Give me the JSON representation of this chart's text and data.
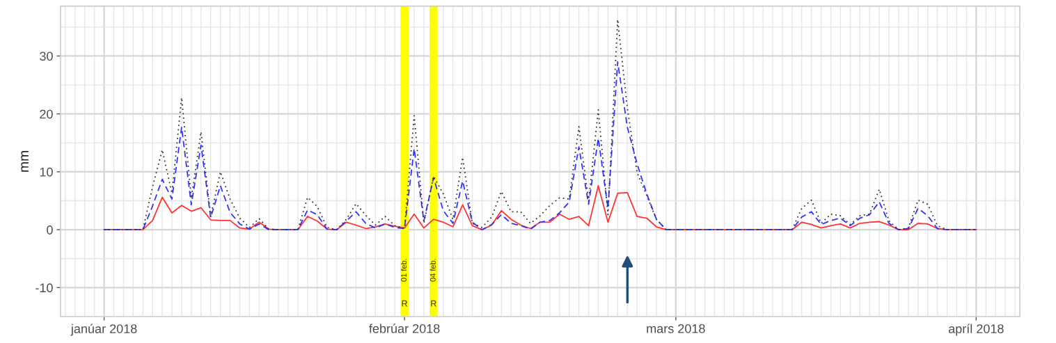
{
  "chart_data": {
    "type": "line",
    "ylabel": "mm",
    "x": [
      "2018-01-01",
      "2018-01-02",
      "2018-01-03",
      "2018-01-04",
      "2018-01-05",
      "2018-01-06",
      "2018-01-07",
      "2018-01-08",
      "2018-01-09",
      "2018-01-10",
      "2018-01-11",
      "2018-01-12",
      "2018-01-13",
      "2018-01-14",
      "2018-01-15",
      "2018-01-16",
      "2018-01-17",
      "2018-01-18",
      "2018-01-19",
      "2018-01-20",
      "2018-01-21",
      "2018-01-22",
      "2018-01-23",
      "2018-01-24",
      "2018-01-25",
      "2018-01-26",
      "2018-01-27",
      "2018-01-28",
      "2018-01-29",
      "2018-01-30",
      "2018-01-31",
      "2018-02-01",
      "2018-02-02",
      "2018-02-03",
      "2018-02-04",
      "2018-02-05",
      "2018-02-06",
      "2018-02-07",
      "2018-02-08",
      "2018-02-09",
      "2018-02-10",
      "2018-02-11",
      "2018-02-12",
      "2018-02-13",
      "2018-02-14",
      "2018-02-15",
      "2018-02-16",
      "2018-02-17",
      "2018-02-18",
      "2018-02-19",
      "2018-02-20",
      "2018-02-21",
      "2018-02-22",
      "2018-02-23",
      "2018-02-24",
      "2018-02-25",
      "2018-02-26",
      "2018-02-27",
      "2018-02-28",
      "2018-03-01",
      "2018-03-02",
      "2018-03-03",
      "2018-03-04",
      "2018-03-05",
      "2018-03-06",
      "2018-03-07",
      "2018-03-08",
      "2018-03-09",
      "2018-03-10",
      "2018-03-11",
      "2018-03-12",
      "2018-03-13",
      "2018-03-14",
      "2018-03-15",
      "2018-03-16",
      "2018-03-17",
      "2018-03-18",
      "2018-03-19",
      "2018-03-20",
      "2018-03-21",
      "2018-03-22",
      "2018-03-23",
      "2018-03-24",
      "2018-03-25",
      "2018-03-26",
      "2018-03-27",
      "2018-03-28",
      "2018-03-29",
      "2018-03-30",
      "2018-03-31",
      "2018-04-01"
    ],
    "series": [
      {
        "color": "#333333",
        "line_style": "dotted",
        "values": [
          0,
          0,
          0,
          0,
          0,
          7.4,
          13.8,
          6.3,
          22.8,
          5.4,
          16.9,
          2.3,
          10.0,
          5.3,
          2.0,
          0.4,
          1.9,
          0.1,
          0,
          0,
          0,
          5.6,
          4.0,
          0.4,
          0,
          1.8,
          4.5,
          2.5,
          0.8,
          2.3,
          0.7,
          0.2,
          19.7,
          1.1,
          9.2,
          6.2,
          1.8,
          12.5,
          1.1,
          0.4,
          2.2,
          6.6,
          3.1,
          3.1,
          1.1,
          2.4,
          4.2,
          5.5,
          5.3,
          17.8,
          4.9,
          20.7,
          2.6,
          36.3,
          21.0,
          9.9,
          5.9,
          1.8,
          0,
          0,
          0,
          0,
          0,
          0,
          0,
          0,
          0,
          0,
          0,
          0,
          0,
          0,
          3.7,
          5.1,
          1.1,
          2.7,
          2.4,
          0.9,
          2.4,
          2.7,
          7.0,
          1.5,
          0,
          0.3,
          5.1,
          4.4,
          0.7,
          0,
          0,
          0,
          0
        ]
      },
      {
        "color": "#3333ff",
        "line_style": "dashed",
        "values": [
          0,
          0,
          0,
          0,
          0,
          4.1,
          8.7,
          5.3,
          17.7,
          4.3,
          14.6,
          2.1,
          7.6,
          3.0,
          1.0,
          0.1,
          1.0,
          0,
          0,
          0,
          0,
          3.4,
          2.6,
          0.1,
          0,
          1.5,
          3.1,
          1.1,
          0.3,
          1.0,
          0.4,
          0.2,
          14.0,
          1.5,
          9.0,
          3.3,
          1.1,
          8.4,
          1.3,
          0,
          0.9,
          2.6,
          1.1,
          0.7,
          0.1,
          1.3,
          1.6,
          2.9,
          4.8,
          14.3,
          4.4,
          15.8,
          3.7,
          29.0,
          17.7,
          11.4,
          6.2,
          1.8,
          0,
          0,
          0,
          0,
          0,
          0,
          0,
          0,
          0,
          0,
          0,
          0,
          0,
          0,
          2.2,
          3.1,
          0.9,
          1.6,
          2.0,
          0.7,
          2.0,
          2.6,
          4.8,
          1.1,
          0,
          0.2,
          3.7,
          2.4,
          0.2,
          0,
          0,
          0,
          0
        ]
      },
      {
        "color": "#ff3333",
        "line_style": "solid",
        "values": [
          0,
          0,
          0,
          0,
          0,
          1.6,
          5.6,
          2.9,
          4.2,
          3.2,
          3.8,
          1.7,
          1.6,
          1.6,
          0.3,
          0.1,
          1.3,
          0.1,
          0,
          0,
          0,
          2.3,
          1.5,
          0.1,
          0,
          1.3,
          0.8,
          0.2,
          0.5,
          1.0,
          0.6,
          0.3,
          2.7,
          0.3,
          1.8,
          1.3,
          0.5,
          4.3,
          0.7,
          0,
          0.8,
          3.3,
          1.8,
          0.8,
          0.2,
          1.3,
          1.3,
          2.7,
          1.8,
          2.3,
          0.7,
          7.6,
          1.3,
          6.3,
          6.4,
          2.3,
          2.0,
          0.5,
          0,
          0,
          0,
          0,
          0,
          0,
          0,
          0,
          0,
          0,
          0,
          0,
          0,
          0,
          1.3,
          0.9,
          0.3,
          0.7,
          1.0,
          0.3,
          1.1,
          1.3,
          1.4,
          0.8,
          0,
          0,
          1.1,
          1.0,
          0.2,
          0,
          0,
          0,
          0
        ]
      }
    ],
    "xlim": [
      "2017-12-27T12:00",
      "2018-04-05T12:00"
    ],
    "xticks": [
      {
        "value": "2018-01-01",
        "label": "janúar 2018"
      },
      {
        "value": "2018-02-01",
        "label": "febrúar 2018"
      },
      {
        "value": "2018-03-01",
        "label": "mars 2018"
      },
      {
        "value": "2018-04-01",
        "label": "apríl 2018"
      }
    ],
    "ylim": [
      -10.3,
      38.6
    ],
    "yticks": [
      -10,
      0,
      10,
      20,
      30
    ],
    "grid": true,
    "bands": [
      {
        "axis": "x",
        "from": "2018-01-31T14:00",
        "to": "2018-02-01T10:00",
        "label": "01 feb.",
        "color": "#ffff00"
      },
      {
        "axis": "x",
        "from": "2018-02-03T14:00",
        "to": "2018-02-04T10:00",
        "label": "04 feb.",
        "color": "#ffff00"
      }
    ],
    "annotations": [
      "R",
      "R"
    ]
  }
}
